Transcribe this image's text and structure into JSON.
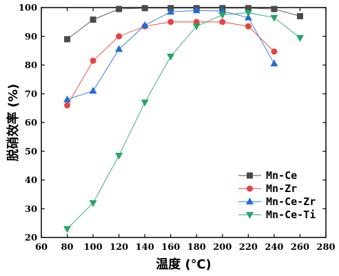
{
  "chart_data": {
    "type": "line",
    "xlabel": "温度 (℃)",
    "ylabel": "脱硝效率 (%)",
    "xlim": [
      60,
      280
    ],
    "ylim": [
      20,
      100
    ],
    "xticks": [
      60,
      80,
      100,
      120,
      140,
      160,
      180,
      200,
      220,
      240,
      260,
      280
    ],
    "yticks": [
      20,
      30,
      40,
      50,
      60,
      70,
      80,
      90,
      100
    ],
    "grid": false,
    "legend_position": "bottom-right",
    "series": [
      {
        "name": "Mn-Ce",
        "color": "#4a4a4a",
        "marker": "square",
        "x": [
          80,
          100,
          120,
          140,
          160,
          180,
          200,
          220,
          240,
          260
        ],
        "values": [
          89,
          95.8,
          99.5,
          99.8,
          99.8,
          99.8,
          99.8,
          99.8,
          99.5,
          97
        ]
      },
      {
        "name": "Mn-Zr",
        "color": "#e8423f",
        "marker": "circle",
        "x": [
          80,
          100,
          120,
          140,
          160,
          180,
          200,
          220,
          240
        ],
        "values": [
          66,
          81.5,
          90,
          93.5,
          95,
          95,
          95,
          93.5,
          84.7
        ]
      },
      {
        "name": "Mn-Ce-Zr",
        "color": "#1f6fd6",
        "marker": "triangle-up",
        "x": [
          80,
          100,
          120,
          140,
          160,
          180,
          200,
          220,
          240
        ],
        "values": [
          68,
          71,
          85.5,
          93.8,
          98.5,
          99,
          98.8,
          96.5,
          80.5
        ]
      },
      {
        "name": "Mn-Ce-Ti",
        "color": "#27a567",
        "marker": "triangle-down",
        "x": [
          80,
          100,
          120,
          140,
          160,
          180,
          200,
          220,
          240,
          260
        ],
        "values": [
          23,
          32,
          48.5,
          67,
          83,
          93.5,
          97.5,
          98.2,
          96.5,
          89.5
        ]
      }
    ]
  }
}
